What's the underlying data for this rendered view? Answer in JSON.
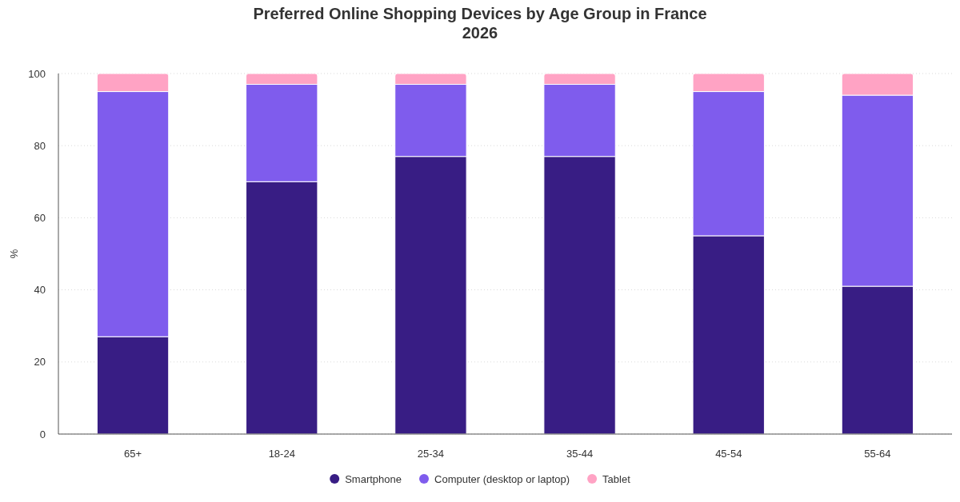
{
  "chart_data": {
    "type": "bar",
    "title": "Preferred Online Shopping Devices by Age Group in France 2026",
    "ylabel": "%",
    "categories": [
      "65+",
      "18-24",
      "25-34",
      "35-44",
      "45-54",
      "55-64"
    ],
    "series": [
      {
        "name": "Smartphone",
        "color": "#381d84",
        "values": [
          27,
          70,
          77,
          77,
          55,
          41
        ]
      },
      {
        "name": "Computer (desktop or laptop)",
        "color": "#7f5ced",
        "values": [
          68,
          27,
          20,
          20,
          40,
          53
        ]
      },
      {
        "name": "Tablet",
        "color": "#ffa3c4",
        "values": [
          5,
          3,
          3,
          3,
          5,
          6
        ]
      }
    ],
    "stacked": true,
    "ylim": [
      0,
      100
    ],
    "yticks": [
      0,
      20,
      40,
      60,
      80,
      100
    ],
    "grid": "y",
    "legend": "bottom"
  }
}
